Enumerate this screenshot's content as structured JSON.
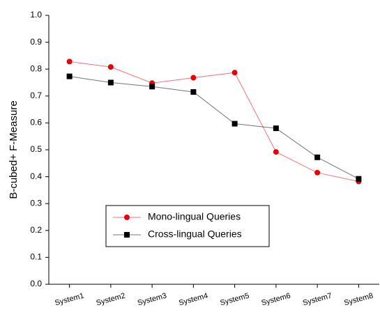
{
  "chart_data": {
    "type": "line",
    "y_label": "B-cubed+ F-Measure",
    "categories": [
      "System1",
      "System2",
      "System3",
      "System4",
      "System5",
      "System6",
      "System7",
      "System8"
    ],
    "series": [
      {
        "name": "Mono-lingual Queries",
        "color": "#e8000b",
        "marker": "circle",
        "values": [
          0.828,
          0.808,
          0.748,
          0.768,
          0.787,
          0.492,
          0.415,
          0.382
        ]
      },
      {
        "name": "Cross-lingual Queries",
        "color": "#000000",
        "marker": "square",
        "values": [
          0.773,
          0.75,
          0.735,
          0.715,
          0.597,
          0.58,
          0.472,
          0.392
        ]
      }
    ],
    "ylim": [
      0,
      1
    ],
    "yticks": [
      {
        "value": 0,
        "label": "0.0"
      },
      0.1,
      0.2,
      0.3,
      0.4,
      0.5,
      0.6,
      0.7,
      0.8,
      0.9,
      {
        "value": 1,
        "label": "1.0"
      }
    ],
    "grid": false
  }
}
